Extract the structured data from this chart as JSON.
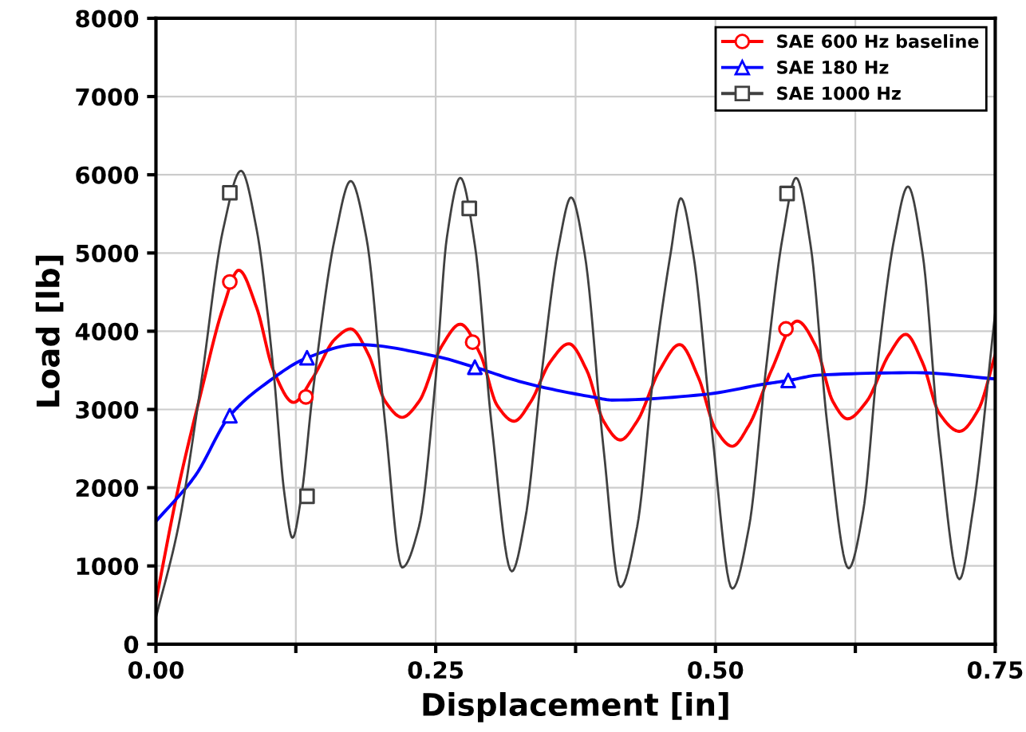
{
  "chart_data": {
    "type": "line",
    "xlabel": "Displacement [in]",
    "ylabel": "Load [lb]",
    "xlim": [
      0,
      0.75
    ],
    "xticks": [
      {
        "value": 0,
        "label": "0.00"
      },
      {
        "value": 0.125,
        "label": null
      },
      {
        "value": 0.25,
        "label": "0.25"
      },
      {
        "value": 0.375,
        "label": null
      },
      {
        "value": 0.5,
        "label": "0.50"
      },
      {
        "value": 0.625,
        "label": null
      },
      {
        "value": 0.75,
        "label": "0.75"
      }
    ],
    "ylim": [
      0,
      8000
    ],
    "yticks": [
      0,
      1000,
      2000,
      3000,
      4000,
      5000,
      6000,
      7000,
      8000
    ],
    "grid": true,
    "legend": "top right",
    "series": [
      {
        "name": "SAE 600 Hz baseline",
        "color": "#ff0000",
        "marker": "none",
        "x": [
          0,
          0.02,
          0.04,
          0.06,
          0.074,
          0.09,
          0.105,
          0.123,
          0.14,
          0.16,
          0.174,
          0.19,
          0.205,
          0.22,
          0.235,
          0.255,
          0.272,
          0.29,
          0.305,
          0.32,
          0.335,
          0.352,
          0.369,
          0.385,
          0.4,
          0.415,
          0.43,
          0.45,
          0.468,
          0.485,
          0.5,
          0.515,
          0.53,
          0.55,
          0.573,
          0.59,
          0.605,
          0.618,
          0.635,
          0.655,
          0.67,
          0.685,
          0.7,
          0.718,
          0.735,
          0.75
        ],
        "values": [
          550,
          2000,
          3200,
          4300,
          4780,
          4300,
          3500,
          3090,
          3400,
          3900,
          4030,
          3700,
          3100,
          2900,
          3100,
          3800,
          4090,
          3700,
          3050,
          2850,
          3100,
          3600,
          3840,
          3500,
          2850,
          2610,
          2850,
          3500,
          3830,
          3400,
          2750,
          2530,
          2800,
          3500,
          4130,
          3800,
          3100,
          2880,
          3100,
          3700,
          3960,
          3600,
          2950,
          2720,
          3000,
          3700
        ]
      },
      {
        "type": "scatter",
        "color": "#ff0000",
        "marker": "circle",
        "x": [
          0.066,
          0.134,
          0.283,
          0.563
        ],
        "values": [
          4630,
          3160,
          3860,
          4030
        ]
      },
      {
        "name": "SAE 180 Hz",
        "color": "#0000ff",
        "marker": "none",
        "x": [
          0,
          0.035,
          0.066,
          0.1,
          0.135,
          0.18,
          0.25,
          0.285,
          0.322,
          0.347,
          0.39,
          0.408,
          0.489,
          0.546,
          0.565,
          0.593,
          0.679,
          0.75
        ],
        "values": [
          1570,
          2150,
          2920,
          3350,
          3660,
          3830,
          3680,
          3540,
          3370,
          3280,
          3160,
          3120,
          3190,
          3330,
          3370,
          3440,
          3470,
          3390
        ]
      },
      {
        "type": "scatter",
        "color": "#0000ff",
        "marker": "triangle",
        "x": [
          0.066,
          0.135,
          0.285,
          0.565
        ],
        "values": [
          2920,
          3660,
          3540,
          3370
        ]
      },
      {
        "name": "SAE 1000 Hz",
        "color": "#404040",
        "marker": "none",
        "x": [
          0,
          0.02,
          0.04,
          0.06,
          0.076,
          0.09,
          0.105,
          0.115,
          0.122,
          0.13,
          0.14,
          0.16,
          0.174,
          0.188,
          0.205,
          0.22,
          0.235,
          0.25,
          0.26,
          0.272,
          0.285,
          0.3,
          0.318,
          0.33,
          0.345,
          0.36,
          0.371,
          0.383,
          0.4,
          0.415,
          0.43,
          0.445,
          0.46,
          0.469,
          0.48,
          0.497,
          0.515,
          0.53,
          0.545,
          0.56,
          0.572,
          0.585,
          0.6,
          0.619,
          0.632,
          0.645,
          0.66,
          0.672,
          0.685,
          0.7,
          0.718,
          0.73,
          0.75
        ],
        "values": [
          340,
          1500,
          3300,
          5300,
          6050,
          5300,
          3500,
          1900,
          1360,
          1900,
          3200,
          5200,
          5920,
          5200,
          2800,
          980,
          1500,
          3400,
          5200,
          5960,
          5100,
          2800,
          930,
          1600,
          3500,
          5100,
          5710,
          5000,
          2500,
          730,
          1500,
          3500,
          5000,
          5700,
          5000,
          2700,
          710,
          1500,
          3500,
          5200,
          5960,
          5100,
          2800,
          970,
          1700,
          3600,
          5200,
          5850,
          5000,
          2600,
          830,
          1700,
          4240
        ]
      },
      {
        "type": "scatter",
        "color": "#404040",
        "marker": "square",
        "x": [
          0.066,
          0.135,
          0.28,
          0.564
        ],
        "values": [
          5770,
          1890,
          5570,
          5760
        ]
      }
    ]
  }
}
